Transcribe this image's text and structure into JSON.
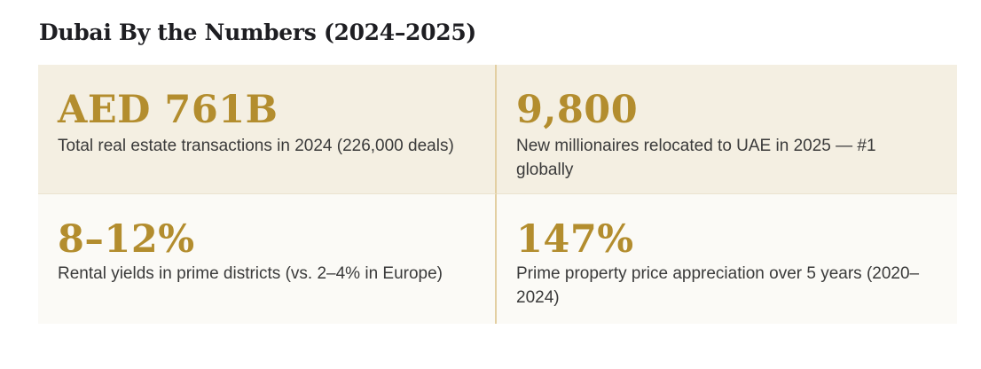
{
  "title": "Dubai By the Numbers (2024–2025)",
  "stats": [
    {
      "value": "AED 761B",
      "description": "Total real estate transactions in 2024 (226,000 deals)"
    },
    {
      "value": "9,800",
      "description": "New millionaires relocated to UAE in 2025 — #1 globally"
    },
    {
      "value": "8–12%",
      "description": "Rental yields in prime districts (vs. 2–4% in Europe)"
    },
    {
      "value": "147%",
      "description": "Prime property price appreciation over 5 years (2020–2024)"
    }
  ],
  "colors": {
    "accent": "#b38d2e",
    "row1_background": "#f4efe2",
    "row2_background": "#fbfaf6",
    "divider": "#e3cfa2",
    "text": "#3a3a3a",
    "title": "#1e1e22"
  }
}
